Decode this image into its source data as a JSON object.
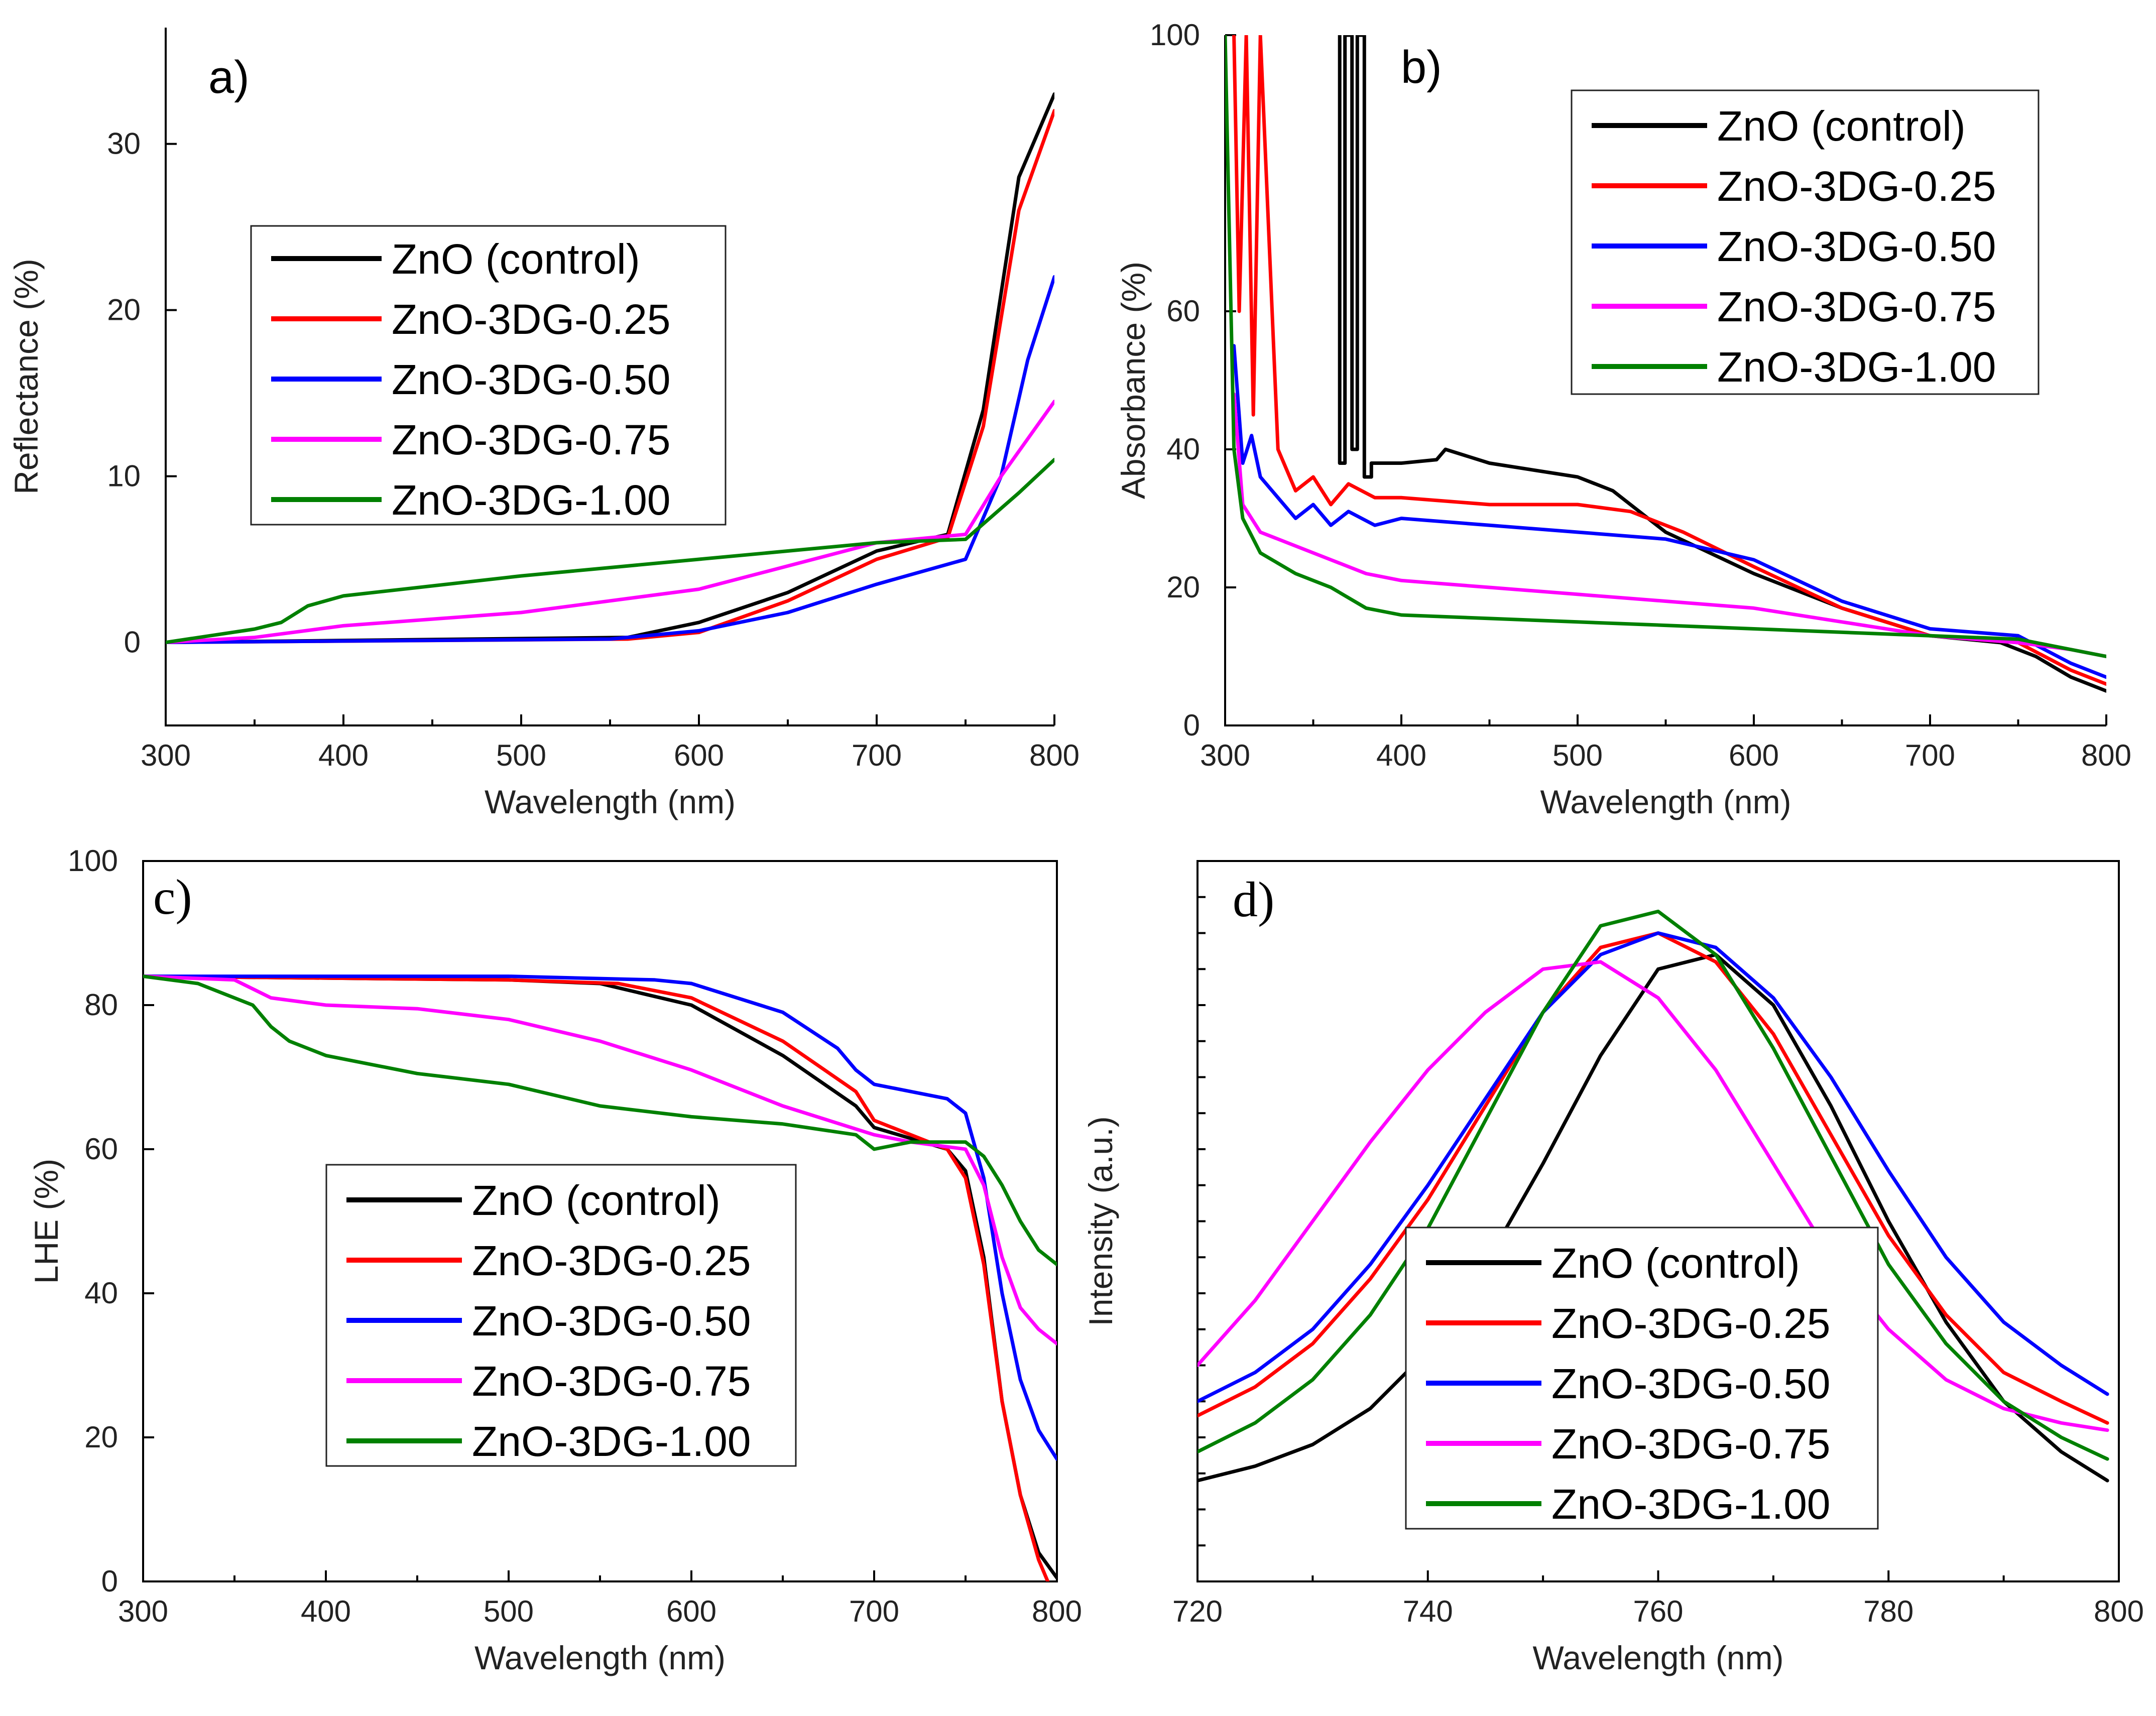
{
  "colors": {
    "ZnO (control)": "#000000",
    "ZnO-3DG-0.25": "#ff0000",
    "ZnO-3DG-0.50": "#0000ff",
    "ZnO-3DG-0.75": "#ff00ff",
    "ZnO-3DG-1.00": "#008000"
  },
  "chart_data": [
    {
      "id": "a",
      "panel_label": "a)",
      "type": "line",
      "xlabel": "Wavelength (nm)",
      "ylabel": "Reflectance (%)",
      "xlim": [
        300,
        800
      ],
      "ylim": [
        -5,
        37
      ],
      "xticks": [
        300,
        400,
        500,
        600,
        700,
        800
      ],
      "yticks": [
        0,
        10,
        20,
        30
      ],
      "legend_position": "middle-left",
      "series": [
        {
          "name": "ZnO (control)",
          "x": [
            300,
            560,
            600,
            650,
            700,
            740,
            760,
            780,
            800
          ],
          "y": [
            0,
            0.3,
            1.2,
            3.0,
            5.5,
            6.5,
            14,
            28,
            33
          ]
        },
        {
          "name": "ZnO-3DG-0.25",
          "x": [
            300,
            560,
            600,
            650,
            700,
            740,
            760,
            780,
            800
          ],
          "y": [
            0,
            0.2,
            0.6,
            2.5,
            5.0,
            6.3,
            13,
            26,
            32
          ]
        },
        {
          "name": "ZnO-3DG-0.50",
          "x": [
            300,
            550,
            600,
            650,
            700,
            750,
            770,
            785,
            800
          ],
          "y": [
            0,
            0.2,
            0.7,
            1.8,
            3.5,
            5.0,
            10,
            17,
            22
          ]
        },
        {
          "name": "ZnO-3DG-0.75",
          "x": [
            300,
            350,
            400,
            500,
            600,
            700,
            750,
            770,
            800
          ],
          "y": [
            0,
            0.3,
            1.0,
            1.8,
            3.2,
            6.0,
            6.5,
            10,
            14.5
          ]
        },
        {
          "name": "ZnO-3DG-1.00",
          "x": [
            300,
            350,
            365,
            380,
            400,
            500,
            600,
            700,
            750,
            780,
            800
          ],
          "y": [
            0,
            0.8,
            1.2,
            2.2,
            2.8,
            4.0,
            5.0,
            6.0,
            6.2,
            9,
            11
          ]
        }
      ]
    },
    {
      "id": "b",
      "panel_label": "b)",
      "type": "line",
      "xlabel": "Wavelength (nm)",
      "ylabel": "Absorbance (%)",
      "xlim": [
        300,
        800
      ],
      "ylim": [
        0,
        100
      ],
      "xticks": [
        300,
        400,
        500,
        600,
        700,
        800
      ],
      "yticks": [
        0,
        20,
        40,
        60,
        100
      ],
      "legend_position": "top-right",
      "series": [
        {
          "name": "ZnO (control)",
          "x": [
            365,
            365,
            368,
            368,
            372,
            372,
            375,
            375,
            379,
            379,
            383,
            383,
            400,
            420,
            425,
            450,
            500,
            520,
            550,
            600,
            650,
            700,
            740,
            760,
            780,
            800
          ],
          "y": [
            100,
            38,
            38,
            100,
            100,
            40,
            40,
            100,
            100,
            36,
            36,
            38,
            38,
            38.5,
            40,
            38,
            36,
            34,
            28,
            22,
            17,
            13,
            12,
            10,
            7,
            5
          ]
        },
        {
          "name": "ZnO-3DG-0.25",
          "x": [
            305,
            308,
            312,
            316,
            320,
            330,
            340,
            350,
            360,
            370,
            385,
            400,
            450,
            500,
            530,
            560,
            600,
            650,
            700,
            750,
            780,
            800
          ],
          "y": [
            100,
            60,
            100,
            45,
            100,
            40,
            34,
            36,
            32,
            35,
            33,
            33,
            32,
            32,
            31,
            28,
            23,
            17,
            13,
            12,
            8,
            6
          ]
        },
        {
          "name": "ZnO-3DG-0.50",
          "x": [
            305,
            310,
            315,
            320,
            330,
            340,
            350,
            360,
            370,
            385,
            400,
            450,
            500,
            550,
            600,
            650,
            700,
            750,
            780,
            800
          ],
          "y": [
            55,
            38,
            42,
            36,
            33,
            30,
            32,
            29,
            31,
            29,
            30,
            29,
            28,
            27,
            24,
            18,
            14,
            13,
            9,
            7
          ]
        },
        {
          "name": "ZnO-3DG-0.75",
          "x": [
            305,
            310,
            320,
            340,
            360,
            380,
            400,
            450,
            500,
            550,
            600,
            650,
            700,
            750,
            780,
            800
          ],
          "y": [
            48,
            32,
            28,
            26,
            24,
            22,
            21,
            20,
            19,
            18,
            17,
            15,
            13,
            12,
            11,
            10
          ]
        },
        {
          "name": "ZnO-3DG-1.00",
          "x": [
            300,
            305,
            310,
            320,
            340,
            360,
            380,
            400,
            450,
            500,
            550,
            600,
            650,
            700,
            750,
            780,
            800
          ],
          "y": [
            100,
            40,
            30,
            25,
            22,
            20,
            17,
            16,
            15.5,
            15,
            14.5,
            14,
            13.5,
            13,
            12.5,
            11,
            10
          ]
        }
      ]
    },
    {
      "id": "c",
      "panel_label": "c)",
      "type": "line",
      "xlabel": "Wavelength (nm)",
      "ylabel": "LHE (%)",
      "xlim": [
        300,
        800
      ],
      "ylim": [
        0,
        100
      ],
      "xticks": [
        300,
        400,
        500,
        600,
        700,
        800
      ],
      "yticks": [
        0,
        20,
        40,
        60,
        80,
        100
      ],
      "legend_position": "bottom-center",
      "series": [
        {
          "name": "ZnO (control)",
          "x": [
            300,
            500,
            550,
            600,
            650,
            690,
            700,
            720,
            740,
            750,
            760,
            770,
            780,
            790,
            800
          ],
          "y": [
            84,
            83.5,
            83,
            80,
            73,
            66,
            63,
            61.5,
            60,
            57,
            45,
            25,
            12,
            4,
            0.5
          ]
        },
        {
          "name": "ZnO-3DG-0.25",
          "x": [
            300,
            500,
            560,
            600,
            650,
            690,
            700,
            720,
            740,
            750,
            760,
            770,
            780,
            790,
            795
          ],
          "y": [
            84,
            83.5,
            83,
            81,
            75,
            68,
            64,
            62,
            60,
            56,
            44,
            25,
            12,
            3,
            0
          ]
        },
        {
          "name": "ZnO-3DG-0.50",
          "x": [
            300,
            500,
            580,
            600,
            650,
            680,
            690,
            700,
            740,
            750,
            760,
            770,
            780,
            790,
            800
          ],
          "y": [
            84,
            84,
            83.5,
            83,
            79,
            74,
            71,
            69,
            67,
            65,
            56,
            40,
            28,
            21,
            17
          ]
        },
        {
          "name": "ZnO-3DG-0.75",
          "x": [
            300,
            350,
            370,
            400,
            450,
            500,
            550,
            600,
            650,
            700,
            720,
            750,
            760,
            770,
            780,
            790,
            800
          ],
          "y": [
            84,
            83.5,
            81,
            80,
            79.5,
            78,
            75,
            71,
            66,
            62,
            61,
            60,
            55,
            45,
            38,
            35,
            33
          ]
        },
        {
          "name": "ZnO-3DG-1.00",
          "x": [
            300,
            330,
            360,
            370,
            380,
            400,
            450,
            500,
            550,
            600,
            650,
            690,
            700,
            720,
            750,
            760,
            770,
            780,
            790,
            800
          ],
          "y": [
            84,
            83,
            80,
            77,
            75,
            73,
            70.5,
            69,
            66,
            64.5,
            63.5,
            62,
            60,
            61,
            61,
            59,
            55,
            50,
            46,
            44
          ]
        }
      ]
    },
    {
      "id": "d",
      "panel_label": "d)",
      "type": "line",
      "xlabel": "Wavelength (nm)",
      "ylabel": "Intensity (a.u.)",
      "xlim": [
        720,
        800
      ],
      "ylim": [
        0,
        1
      ],
      "xticks": [
        720,
        740,
        760,
        780,
        800
      ],
      "yticks": [],
      "legend_position": "bottom-center",
      "series": [
        {
          "name": "ZnO (control)",
          "x": [
            720,
            725,
            730,
            735,
            740,
            745,
            750,
            755,
            760,
            765,
            770,
            775,
            780,
            785,
            790,
            795,
            799
          ],
          "y": [
            0.14,
            0.16,
            0.19,
            0.24,
            0.32,
            0.44,
            0.58,
            0.73,
            0.85,
            0.87,
            0.8,
            0.66,
            0.5,
            0.36,
            0.25,
            0.18,
            0.14
          ]
        },
        {
          "name": "ZnO-3DG-0.25",
          "x": [
            720,
            725,
            730,
            735,
            740,
            745,
            750,
            755,
            760,
            765,
            770,
            775,
            780,
            785,
            790,
            795,
            799
          ],
          "y": [
            0.23,
            0.27,
            0.33,
            0.42,
            0.53,
            0.66,
            0.79,
            0.88,
            0.9,
            0.86,
            0.76,
            0.62,
            0.48,
            0.37,
            0.29,
            0.25,
            0.22
          ]
        },
        {
          "name": "ZnO-3DG-0.50",
          "x": [
            720,
            725,
            730,
            735,
            740,
            745,
            750,
            755,
            760,
            765,
            770,
            775,
            780,
            785,
            790,
            795,
            799
          ],
          "y": [
            0.25,
            0.29,
            0.35,
            0.44,
            0.55,
            0.67,
            0.79,
            0.87,
            0.9,
            0.88,
            0.81,
            0.7,
            0.57,
            0.45,
            0.36,
            0.3,
            0.26
          ]
        },
        {
          "name": "ZnO-3DG-0.75",
          "x": [
            720,
            725,
            730,
            735,
            740,
            745,
            750,
            755,
            760,
            765,
            770,
            775,
            780,
            785,
            790,
            795,
            799
          ],
          "y": [
            0.3,
            0.39,
            0.5,
            0.61,
            0.71,
            0.79,
            0.85,
            0.86,
            0.81,
            0.71,
            0.58,
            0.45,
            0.35,
            0.28,
            0.24,
            0.22,
            0.21
          ]
        },
        {
          "name": "ZnO-3DG-1.00",
          "x": [
            720,
            725,
            730,
            735,
            740,
            745,
            750,
            755,
            760,
            765,
            770,
            775,
            780,
            785,
            790,
            795,
            799
          ],
          "y": [
            0.18,
            0.22,
            0.28,
            0.37,
            0.49,
            0.64,
            0.79,
            0.91,
            0.93,
            0.87,
            0.74,
            0.59,
            0.44,
            0.33,
            0.25,
            0.2,
            0.17
          ]
        }
      ]
    }
  ]
}
